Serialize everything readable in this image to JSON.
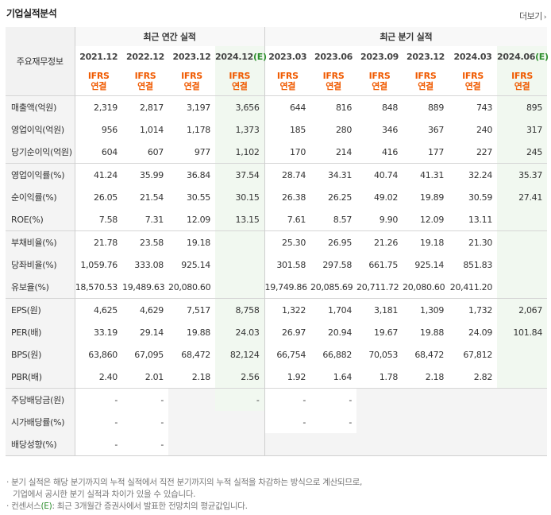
{
  "title": "기업실적분석",
  "more_label": "더보기",
  "header": {
    "row_label": "주요재무정보",
    "annual_group": "최근 연간 실적",
    "quarter_group": "최근 분기 실적",
    "periods": [
      "2021.12",
      "2022.12",
      "2023.12",
      "2024.12",
      "2023.03",
      "2023.06",
      "2023.09",
      "2023.12",
      "2024.03",
      "2024.06"
    ],
    "est_mark": "(E)",
    "ifrs_top": "IFRS",
    "ifrs_bottom": "연결"
  },
  "rows": [
    {
      "label": "매출액(억원)",
      "values": [
        "2,319",
        "2,817",
        "3,197",
        "3,656",
        "644",
        "816",
        "848",
        "889",
        "743",
        "895"
      ]
    },
    {
      "label": "영업이익(억원)",
      "values": [
        "956",
        "1,014",
        "1,178",
        "1,373",
        "185",
        "280",
        "346",
        "367",
        "240",
        "317"
      ]
    },
    {
      "label": "당기순이익(억원)",
      "values": [
        "604",
        "607",
        "977",
        "1,102",
        "170",
        "214",
        "416",
        "177",
        "227",
        "245"
      ]
    },
    {
      "label": "영업이익률(%)",
      "values": [
        "41.24",
        "35.99",
        "36.84",
        "37.54",
        "28.74",
        "34.31",
        "40.74",
        "41.31",
        "32.24",
        "35.37"
      ]
    },
    {
      "label": "순이익률(%)",
      "values": [
        "26.05",
        "21.54",
        "30.55",
        "30.15",
        "26.38",
        "26.25",
        "49.02",
        "19.89",
        "30.59",
        "27.41"
      ]
    },
    {
      "label": "ROE(%)",
      "values": [
        "7.58",
        "7.31",
        "12.09",
        "13.15",
        "7.61",
        "8.57",
        "9.90",
        "12.09",
        "13.11",
        ""
      ]
    },
    {
      "label": "부채비율(%)",
      "values": [
        "21.78",
        "23.58",
        "19.18",
        "",
        "25.30",
        "26.95",
        "21.26",
        "19.18",
        "21.30",
        ""
      ]
    },
    {
      "label": "당좌비율(%)",
      "values": [
        "1,059.76",
        "333.08",
        "925.14",
        "",
        "301.58",
        "297.58",
        "661.75",
        "925.14",
        "851.83",
        ""
      ]
    },
    {
      "label": "유보율(%)",
      "values": [
        "18,570.53",
        "19,489.63",
        "20,080.60",
        "",
        "19,749.86",
        "20,085.69",
        "20,711.72",
        "20,080.60",
        "20,411.20",
        ""
      ]
    },
    {
      "label": "EPS(원)",
      "values": [
        "4,625",
        "4,629",
        "7,517",
        "8,758",
        "1,322",
        "1,704",
        "3,181",
        "1,309",
        "1,732",
        "2,067"
      ]
    },
    {
      "label": "PER(배)",
      "values": [
        "33.19",
        "29.14",
        "19.88",
        "24.03",
        "26.97",
        "20.94",
        "19.67",
        "19.88",
        "24.09",
        "101.84"
      ]
    },
    {
      "label": "BPS(원)",
      "values": [
        "63,860",
        "67,095",
        "68,472",
        "82,124",
        "66,754",
        "66,882",
        "70,053",
        "68,472",
        "67,812",
        ""
      ]
    },
    {
      "label": "PBR(배)",
      "values": [
        "2.40",
        "2.01",
        "2.18",
        "2.56",
        "1.92",
        "1.64",
        "1.78",
        "2.18",
        "2.82",
        ""
      ]
    },
    {
      "label": "주당배당금(원)",
      "values": [
        "-",
        "-",
        "",
        "-",
        "-",
        "-",
        "",
        "",
        "",
        ""
      ]
    },
    {
      "label": "시가배당률(%)",
      "values": [
        "-",
        "-",
        "",
        "",
        "-",
        "-",
        "",
        "",
        "",
        ""
      ]
    },
    {
      "label": "배당성향(%)",
      "values": [
        "-",
        "-",
        "",
        "",
        "",
        "",
        "",
        "",
        "",
        ""
      ]
    }
  ],
  "notes": {
    "line1": "· 분기 실적은 해당 분기까지의 누적 실적에서 직전 분기까지의 누적 실적을 차감하는 방식으로 계산되므로,",
    "line2": "기업에서 공시한 분기 실적과 차이가 있을 수 있습니다.",
    "line3_prefix": "· 컨센서스",
    "line3_mark": "(E)",
    "line3_suffix": ": 최근 3개월간 증권사에서 발표한 전망치의 평균값입니다."
  },
  "colors": {
    "ifrs": "#f05a00",
    "estimate": "#2f8f2f",
    "estimate_bg": "#f1f8f0"
  }
}
